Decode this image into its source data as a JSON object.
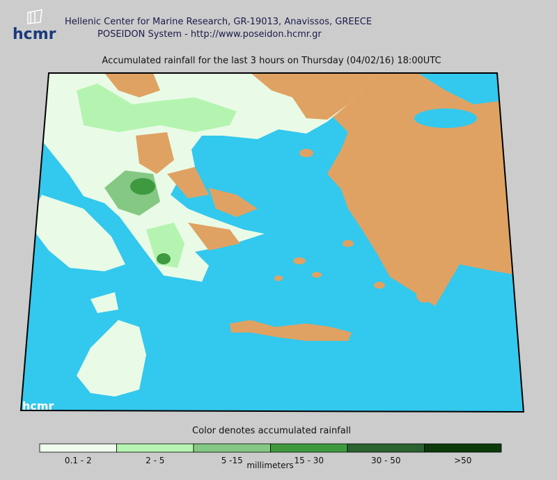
{
  "header": {
    "logo": "hcmr",
    "line1": "Hellenic Center for Marine Research, GR-19013, Anavissos, GREECE",
    "line2": "POSEIDON System - http://www.poseidon.hcmr.gr"
  },
  "title": "Accumulated rainfall for the last 3 hours on Thursday (04/02/16) 18:00UTC",
  "legend": {
    "title": "Color denotes accumulated rainfall",
    "unit": "millimeters",
    "items": [
      {
        "label": "0.1 - 2",
        "color": "#effdef"
      },
      {
        "label": "2 - 5",
        "color": "#b4f4b0"
      },
      {
        "label": "5 -15",
        "color": "#84c884"
      },
      {
        "label": "15 - 30",
        "color": "#3f9a3f"
      },
      {
        "label": "30 - 50",
        "color": "#2b6330"
      },
      {
        "label": ">50",
        "color": "#0b3a0b"
      }
    ]
  }
}
